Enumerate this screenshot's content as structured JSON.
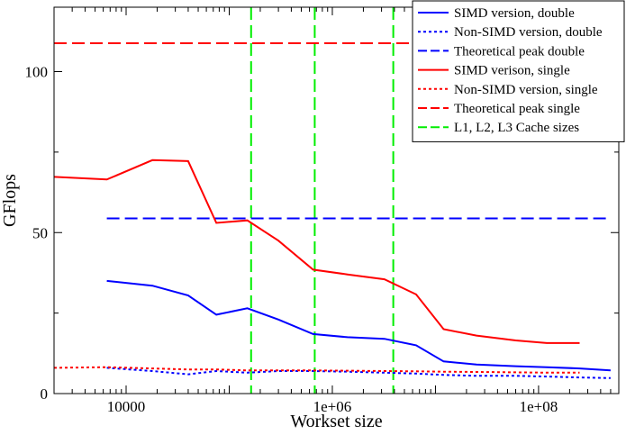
{
  "chart_data": {
    "type": "line",
    "title": "",
    "xlabel": "Workset size",
    "ylabel": "GFlops",
    "x_scale": "log10",
    "xlim": [
      2000,
      600000000
    ],
    "ylim": [
      0,
      120
    ],
    "grid": false,
    "legend_position": "top-right",
    "x_tick_labels": [
      {
        "value": 10000,
        "label": "10000"
      },
      {
        "value": 1000000,
        "label": "1e+06"
      },
      {
        "value": 100000000,
        "label": "1e+08"
      }
    ],
    "y_tick_labels": [
      {
        "value": 0,
        "label": "0"
      },
      {
        "value": 50,
        "label": "50"
      },
      {
        "value": 100,
        "label": "100"
      }
    ],
    "series": [
      {
        "name": "SIMD version, double",
        "color": "#0000ff",
        "dash": "solid",
        "x": [
          6500,
          18000,
          40000,
          75000,
          150000,
          300000,
          650000,
          1400000,
          3200000,
          6500000,
          12000000,
          25000000,
          60000000,
          120000000,
          250000000,
          500000000
        ],
        "y": [
          35,
          33.5,
          30.5,
          24.5,
          26.5,
          23,
          18.5,
          17.5,
          17,
          15,
          10,
          9,
          8.5,
          8.2,
          7.8,
          7.2
        ]
      },
      {
        "name": "Non-SIMD version, double",
        "color": "#0000ff",
        "dash": "dotted",
        "x": [
          6500,
          18000,
          40000,
          75000,
          150000,
          300000,
          650000,
          1400000,
          3200000,
          6500000,
          12000000,
          25000000,
          60000000,
          120000000,
          250000000,
          500000000
        ],
        "y": [
          8,
          7,
          6,
          7,
          6.5,
          7,
          7,
          6.8,
          6.5,
          6.2,
          5.8,
          5.5,
          5.5,
          5.3,
          5,
          4.8
        ]
      },
      {
        "name": "Theoretical peak double",
        "color": "#0000ff",
        "dash": "dashed",
        "x": [
          6500,
          500000000
        ],
        "y": [
          54.4,
          54.4
        ]
      },
      {
        "name": "SIMD verison, single",
        "color": "#ff0000",
        "dash": "solid",
        "x": [
          2000,
          6500,
          18000,
          40000,
          75000,
          150000,
          300000,
          650000,
          1400000,
          3200000,
          6500000,
          12000000,
          25000000,
          60000000,
          120000000,
          250000000
        ],
        "y": [
          67.3,
          66.5,
          72.5,
          72.2,
          53,
          53.8,
          47.5,
          38.5,
          37,
          35.5,
          30.8,
          20,
          18,
          16.5,
          15.7,
          15.7
        ]
      },
      {
        "name": "Non-SIMD version, single",
        "color": "#ff0000",
        "dash": "dotted",
        "x": [
          2000,
          6500,
          18000,
          40000,
          75000,
          150000,
          300000,
          650000,
          1400000,
          3200000,
          6500000,
          12000000,
          25000000,
          60000000,
          120000000,
          250000000
        ],
        "y": [
          8,
          8.2,
          7.8,
          7.5,
          7.5,
          7.2,
          7.2,
          7.2,
          7.1,
          7,
          6.9,
          6.8,
          6.7,
          6.6,
          6.5,
          6.5
        ]
      },
      {
        "name": "Theoretical peak single",
        "color": "#ff0000",
        "dash": "dashed",
        "x": [
          2000,
          500000000
        ],
        "y": [
          108.8,
          108.8
        ]
      }
    ],
    "vertical_lines": {
      "name": "L1, L2, L3 Cache sizes",
      "color": "#00ee00",
      "dash": "dashed",
      "x": [
        163000,
        675000,
        3900000
      ]
    },
    "legend_entries": [
      {
        "label": "SIMD version, double",
        "color": "#0000ff",
        "dash": "solid"
      },
      {
        "label": "Non-SIMD version, double",
        "color": "#0000ff",
        "dash": "dotted"
      },
      {
        "label": "Theoretical peak double",
        "color": "#0000ff",
        "dash": "dashed"
      },
      {
        "label": "SIMD verison, single",
        "color": "#ff0000",
        "dash": "solid"
      },
      {
        "label": "Non-SIMD version, single",
        "color": "#ff0000",
        "dash": "dotted"
      },
      {
        "label": "Theoretical peak single",
        "color": "#ff0000",
        "dash": "dashed"
      },
      {
        "label": "L1, L2, L3 Cache sizes",
        "color": "#00ee00",
        "dash": "dashed"
      }
    ]
  }
}
